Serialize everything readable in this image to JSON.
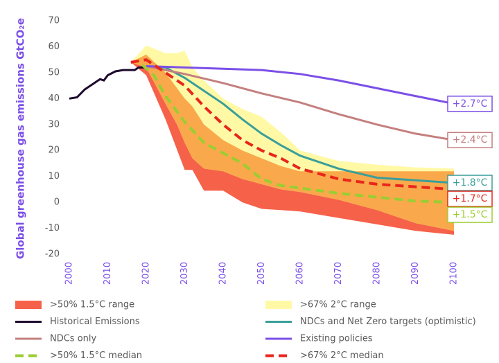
{
  "chart_data": {
    "type": "line",
    "y_label": "Global greenhouse gas emissions GtCO₂e",
    "xlim": [
      2000,
      2100
    ],
    "xticks": [
      2000,
      2010,
      2020,
      2030,
      2040,
      2050,
      2060,
      2070,
      2080,
      2090,
      2100
    ],
    "ylim": [
      -20,
      70
    ],
    "yticks": [
      -20,
      -10,
      0,
      10,
      20,
      30,
      40,
      50,
      60,
      70
    ],
    "grid": false,
    "series": [
      {
        "name": ">50% 1.5°C range",
        "style": "band",
        "color": "#f6614a",
        "x": [
          2016,
          2020,
          2025,
          2030,
          2032,
          2035,
          2040,
          2045,
          2050,
          2055,
          2060,
          2070,
          2080,
          2090,
          2100
        ],
        "values": [
          54,
          49,
          32,
          12.5,
          12.5,
          4.5,
          4.5,
          0,
          -2.5,
          -3,
          -3.5,
          -6,
          -8.5,
          -11,
          -12.5
        ],
        "upper": [
          54,
          57,
          50,
          40,
          37,
          30,
          24,
          20,
          17,
          14,
          12,
          12,
          12,
          12,
          12
        ]
      },
      {
        "name": ">67% 2°C range",
        "style": "band",
        "color": "#fff9a6",
        "x": [
          2016,
          2020,
          2025,
          2028,
          2030,
          2032,
          2035,
          2040,
          2045,
          2050,
          2055,
          2060,
          2070,
          2080,
          2090,
          2100
        ],
        "values": [
          54,
          52,
          38,
          30,
          23,
          17,
          13,
          12,
          9,
          7,
          5,
          4,
          1,
          -3,
          -8,
          -11
        ],
        "upper": [
          54,
          60.5,
          57.5,
          57.5,
          58.5,
          52,
          47,
          40,
          36,
          33,
          27,
          20,
          16,
          14.5,
          13.5,
          13
        ]
      },
      {
        "name": "Historical Emissions",
        "style": "line",
        "color": "#1e0a2e",
        "x": [
          2000,
          2002,
          2004,
          2006,
          2008,
          2009,
          2010,
          2012,
          2014,
          2016,
          2017,
          2018,
          2020
        ],
        "values": [
          40,
          40.5,
          43.5,
          45.5,
          47.5,
          47,
          49,
          50.5,
          51,
          51,
          51,
          52,
          52
        ]
      },
      {
        "name": "NDCs and Net Zero targets (optimistic)",
        "style": "line",
        "color": "#3a9e9a",
        "label": "+1.8°C",
        "x": [
          2020,
          2025,
          2030,
          2035,
          2040,
          2045,
          2050,
          2055,
          2060,
          2070,
          2080,
          2090,
          2100
        ],
        "values": [
          52.5,
          52,
          48,
          43,
          38,
          32,
          26.5,
          22,
          18,
          13,
          9.5,
          8.5,
          7.5
        ]
      },
      {
        "name": "NDCs only",
        "style": "line",
        "color": "#c47f7f",
        "label": "+2.4°C",
        "x": [
          2020,
          2030,
          2040,
          2050,
          2060,
          2070,
          2080,
          2090,
          2100
        ],
        "values": [
          52.5,
          49.5,
          46,
          42,
          38.5,
          34,
          30,
          26.5,
          24
        ]
      },
      {
        "name": "Existing policies",
        "style": "line",
        "color": "#7b4fe8",
        "label": "+2.7°C",
        "x": [
          2020,
          2030,
          2040,
          2050,
          2060,
          2070,
          2080,
          2090,
          2100
        ],
        "values": [
          52.5,
          52,
          51.5,
          51,
          49.5,
          47,
          44,
          41,
          38
        ]
      },
      {
        "name": ">50% 1.5°C median",
        "style": "dashed",
        "color": "#9acd32",
        "label": "+1.5°C",
        "x": [
          2019,
          2022,
          2025,
          2030,
          2035,
          2040,
          2045,
          2050,
          2055,
          2060,
          2070,
          2080,
          2090,
          2100
        ],
        "values": [
          53,
          49,
          41,
          31,
          23,
          19,
          15,
          9,
          6.5,
          5.5,
          3.5,
          2,
          0.5,
          0
        ]
      },
      {
        "name": ">67% 2°C median",
        "style": "dashed",
        "color": "#e8261c",
        "label": "+1.7°C",
        "x": [
          2016,
          2020,
          2025,
          2030,
          2035,
          2040,
          2045,
          2050,
          2055,
          2060,
          2070,
          2080,
          2090,
          2100
        ],
        "values": [
          54,
          55,
          50,
          45,
          37,
          30,
          24,
          20,
          17,
          13,
          9,
          7,
          6,
          5
        ]
      }
    ],
    "overlap_color": "#f9a94b"
  }
}
